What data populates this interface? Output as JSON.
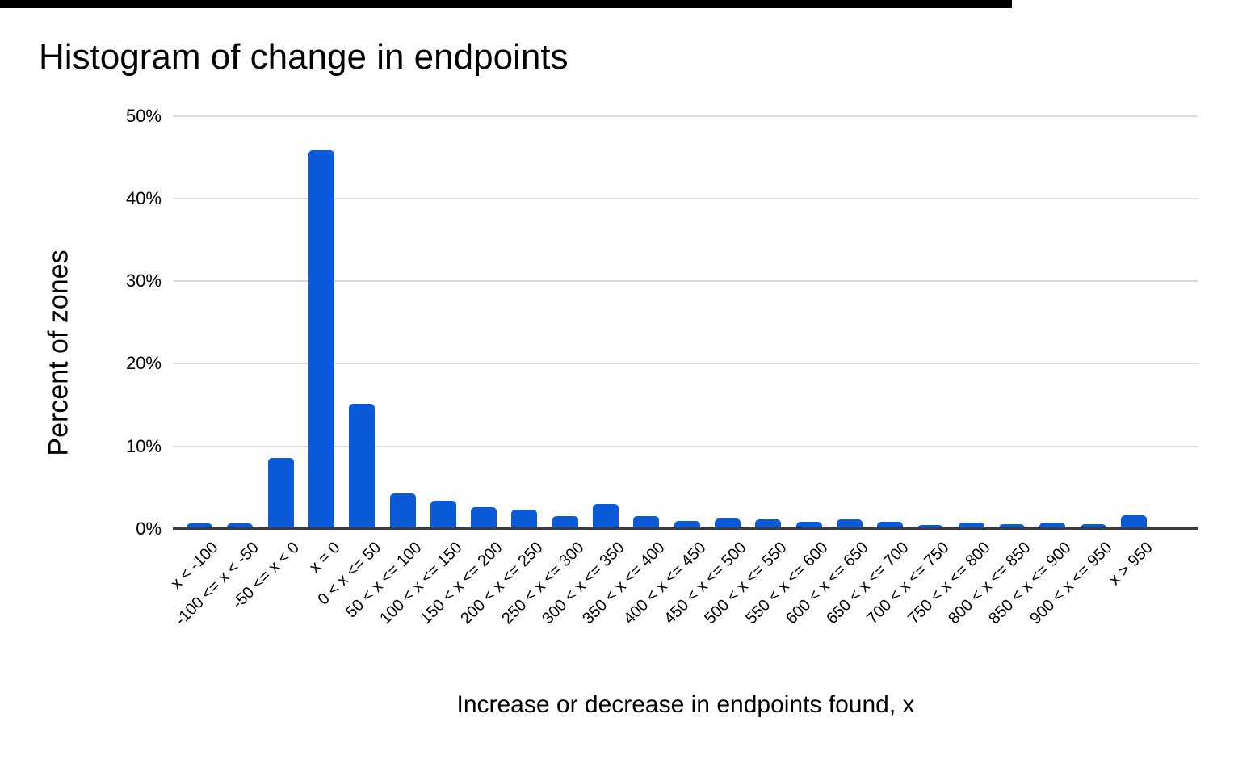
{
  "page": {
    "background": "#ffffff",
    "top_bar_color": "#000000"
  },
  "chart_data": {
    "type": "bar",
    "title": "Histogram of change in endpoints",
    "xlabel": "Increase or decrease in endpoints found, x",
    "ylabel": "Percent of zones",
    "categories": [
      "x < -100",
      "-100 <= x < -50",
      "-50 <= x < 0",
      "x = 0",
      "0 < x <= 50",
      "50 < x <= 100",
      "100 < x <= 150",
      "150 < x <= 200",
      "200 < x <= 250",
      "250 < x <= 300",
      "300 < x <= 350",
      "350 < x <= 400",
      "400 < x <= 450",
      "450 < x <= 500",
      "500 < x <= 550",
      "550 < x <= 600",
      "600 < x <= 650",
      "650 < x <= 700",
      "700 < x <= 750",
      "750 < x <= 800",
      "800 < x <= 850",
      "850 < x <= 900",
      "900 < x <= 950",
      "x > 950"
    ],
    "values": [
      0.7,
      0.7,
      8.6,
      45.8,
      15.2,
      4.3,
      3.4,
      2.6,
      2.3,
      1.6,
      3.0,
      1.6,
      1.0,
      1.3,
      1.2,
      0.9,
      1.2,
      0.9,
      0.5,
      0.8,
      0.6,
      0.8,
      0.6,
      1.7
    ],
    "yticks": [
      {
        "value": 0,
        "label": "0%"
      },
      {
        "value": 10,
        "label": "10%"
      },
      {
        "value": 20,
        "label": "20%"
      },
      {
        "value": 30,
        "label": "30%"
      },
      {
        "value": 40,
        "label": "40%"
      },
      {
        "value": 50,
        "label": "50%"
      }
    ],
    "ylim": [
      0,
      50
    ],
    "grid": true,
    "legend": "none",
    "bar_color": "#0b5bd8",
    "gridline_color": "#d9d9d9",
    "axis_line_color": "#3c3c3c",
    "text_color": "#000000"
  }
}
